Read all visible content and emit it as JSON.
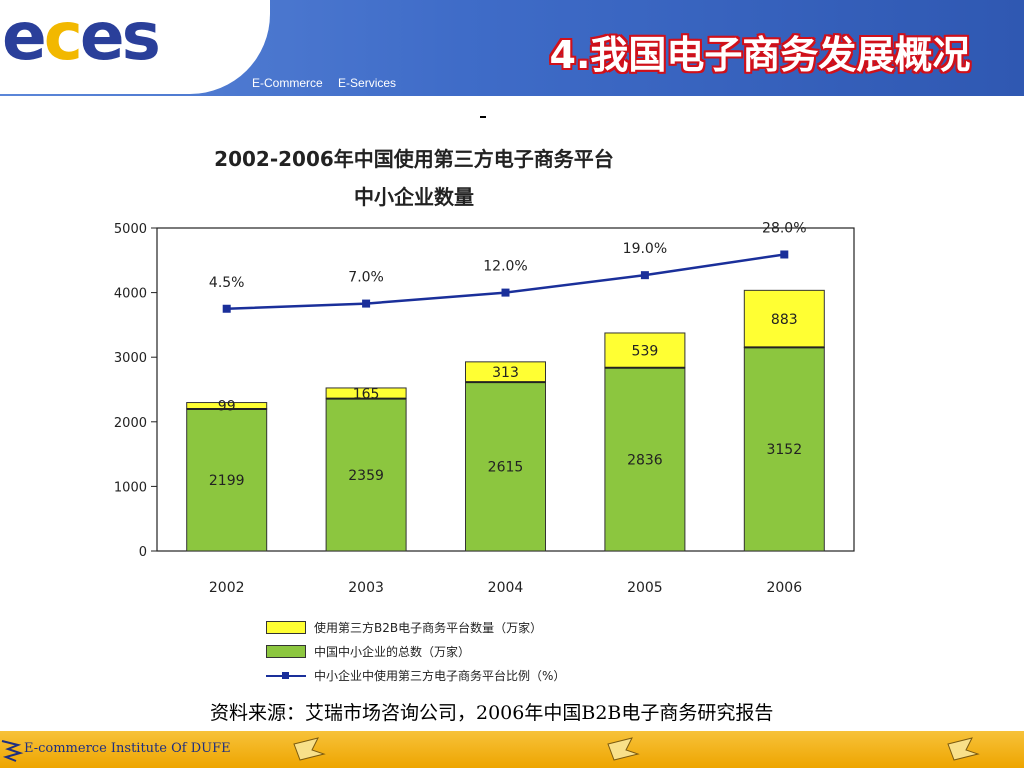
{
  "header": {
    "logo": "eces",
    "tagline": [
      "E-Commerce",
      "E-Services"
    ],
    "slide_title": "4.我国电子商务发展概况"
  },
  "chart_data": {
    "type": "bar",
    "stacked": true,
    "title_lines": [
      "2002-2006年中国使用第三方电子商务平台",
      "中小企业数量"
    ],
    "categories": [
      "2002",
      "2003",
      "2004",
      "2005",
      "2006"
    ],
    "ylim": [
      0,
      5000
    ],
    "yticks": [
      0,
      1000,
      2000,
      3000,
      4000,
      5000
    ],
    "grid": false,
    "series": [
      {
        "name": "中国中小企业的总数（万家）",
        "kind": "bar",
        "color": "#8cc63f",
        "values": [
          2199,
          2359,
          2615,
          2836,
          3152
        ]
      },
      {
        "name": "使用第三方B2B电子商务平台数量（万家）",
        "kind": "bar",
        "color": "#ffff33",
        "values": [
          99,
          165,
          313,
          539,
          883
        ]
      },
      {
        "name": "中小企业中使用第三方电子商务平台比例（%）",
        "kind": "line",
        "color": "#1a2f9a",
        "values": [
          4.5,
          7.0,
          12.0,
          19.0,
          28.0
        ],
        "labels": [
          "4.5%",
          "7.0%",
          "12.0%",
          "19.0%",
          "28.0%"
        ],
        "plotted_on_left_axis": [
          3750,
          3830,
          4000,
          4270,
          4590
        ]
      }
    ],
    "legend_position": "bottom"
  },
  "legend": [
    {
      "label": "使用第三方B2B电子商务平台数量（万家）",
      "color": "#ffff33",
      "kind": "swatch"
    },
    {
      "label": "中国中小企业的总数（万家）",
      "color": "#8cc63f",
      "kind": "swatch"
    },
    {
      "label": "中小企业中使用第三方电子商务平台比例（%）",
      "color": "#1a2f9a",
      "kind": "line"
    }
  ],
  "source_note": "资料来源：艾瑞市场咨询公司，2006年中国B2B电子商务研究报告",
  "footer": {
    "text": "E-commerce Institute Of DUFE"
  }
}
